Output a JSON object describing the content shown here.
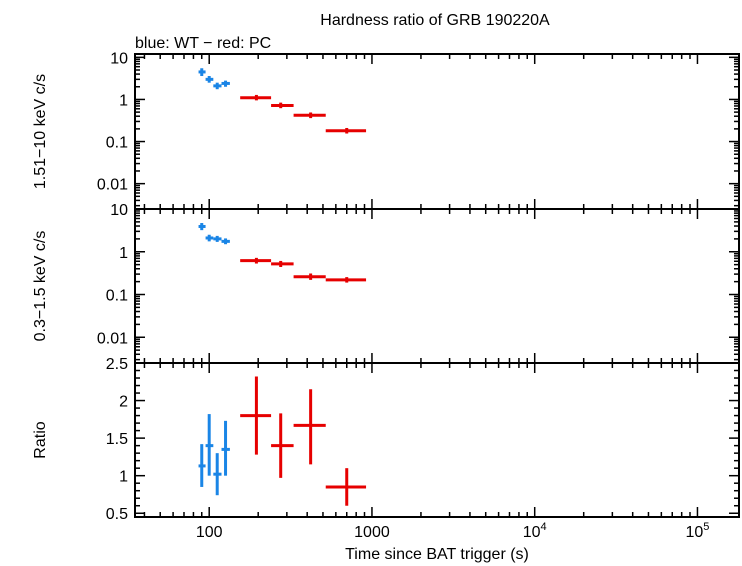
{
  "chart_data": {
    "type": "scatter",
    "title": "Hardness ratio of GRB 190220A",
    "subtitle": "blue: WT − red: PC",
    "xlabel": "Time since BAT trigger (s)",
    "xscale": "log",
    "xlim": [
      35,
      180000
    ],
    "x_ticks": [
      {
        "value": 100,
        "label": "100"
      },
      {
        "value": 1000,
        "label": "1000"
      },
      {
        "value": 10000,
        "label": "10",
        "sup": "4"
      },
      {
        "value": 100000,
        "label": "10",
        "sup": "5"
      }
    ],
    "colors": {
      "WT": "#1a85e6",
      "PC": "#e60000"
    },
    "panels": [
      {
        "id": "hard",
        "ylabel": "1.51−10 keV c/s",
        "yscale": "log",
        "ylim": [
          0.0025,
          12
        ],
        "y_ticks": [
          {
            "value": 10,
            "label": "10"
          },
          {
            "value": 1,
            "label": "1"
          },
          {
            "value": 0.1,
            "label": "0.1"
          },
          {
            "value": 0.01,
            "label": "0.01"
          }
        ],
        "series": [
          {
            "key": "WT",
            "points": [
              {
                "x": 90,
                "xlo": 86,
                "xhi": 95,
                "y": 4.5,
                "ylo": 3.6,
                "yhi": 5.5
              },
              {
                "x": 100,
                "xlo": 95,
                "xhi": 106,
                "y": 3.0,
                "ylo": 2.5,
                "yhi": 3.6
              },
              {
                "x": 112,
                "xlo": 106,
                "xhi": 119,
                "y": 2.1,
                "ylo": 1.75,
                "yhi": 2.5
              },
              {
                "x": 126,
                "xlo": 119,
                "xhi": 134,
                "y": 2.4,
                "ylo": 2.0,
                "yhi": 2.8
              }
            ]
          },
          {
            "key": "PC",
            "points": [
              {
                "x": 195,
                "xlo": 155,
                "xhi": 240,
                "y": 1.1,
                "ylo": 0.95,
                "yhi": 1.28
              },
              {
                "x": 275,
                "xlo": 240,
                "xhi": 330,
                "y": 0.72,
                "ylo": 0.62,
                "yhi": 0.84
              },
              {
                "x": 420,
                "xlo": 330,
                "xhi": 520,
                "y": 0.42,
                "ylo": 0.36,
                "yhi": 0.49
              },
              {
                "x": 700,
                "xlo": 520,
                "xhi": 920,
                "y": 0.18,
                "ylo": 0.155,
                "yhi": 0.21
              }
            ]
          }
        ]
      },
      {
        "id": "soft",
        "ylabel": "0.3−1.5 keV c/s",
        "yscale": "log",
        "ylim": [
          0.0025,
          10
        ],
        "y_ticks": [
          {
            "value": 10,
            "label": "10"
          },
          {
            "value": 1,
            "label": "1"
          },
          {
            "value": 0.1,
            "label": "0.1"
          },
          {
            "value": 0.01,
            "label": "0.01"
          }
        ],
        "series": [
          {
            "key": "WT",
            "points": [
              {
                "x": 90,
                "xlo": 86,
                "xhi": 95,
                "y": 3.9,
                "ylo": 3.2,
                "yhi": 4.7
              },
              {
                "x": 100,
                "xlo": 95,
                "xhi": 106,
                "y": 2.1,
                "ylo": 1.75,
                "yhi": 2.5
              },
              {
                "x": 112,
                "xlo": 106,
                "xhi": 119,
                "y": 2.0,
                "ylo": 1.7,
                "yhi": 2.35
              },
              {
                "x": 126,
                "xlo": 119,
                "xhi": 134,
                "y": 1.75,
                "ylo": 1.5,
                "yhi": 2.05
              }
            ]
          },
          {
            "key": "PC",
            "points": [
              {
                "x": 195,
                "xlo": 155,
                "xhi": 240,
                "y": 0.62,
                "ylo": 0.53,
                "yhi": 0.72
              },
              {
                "x": 275,
                "xlo": 240,
                "xhi": 330,
                "y": 0.52,
                "ylo": 0.44,
                "yhi": 0.61
              },
              {
                "x": 420,
                "xlo": 330,
                "xhi": 520,
                "y": 0.26,
                "ylo": 0.22,
                "yhi": 0.31
              },
              {
                "x": 700,
                "xlo": 520,
                "xhi": 920,
                "y": 0.22,
                "ylo": 0.19,
                "yhi": 0.255
              }
            ]
          }
        ]
      },
      {
        "id": "ratio",
        "ylabel": "Ratio",
        "yscale": "linear",
        "ylim": [
          0.45,
          2.5
        ],
        "y_ticks": [
          {
            "value": 2.5,
            "label": "2.5"
          },
          {
            "value": 2,
            "label": "2"
          },
          {
            "value": 1.5,
            "label": "1.5"
          },
          {
            "value": 1,
            "label": "1"
          },
          {
            "value": 0.5,
            "label": "0.5"
          }
        ],
        "series": [
          {
            "key": "WT",
            "points": [
              {
                "x": 90,
                "xlo": 86,
                "xhi": 95,
                "y": 1.13,
                "ylo": 0.85,
                "yhi": 1.42
              },
              {
                "x": 100,
                "xlo": 95,
                "xhi": 106,
                "y": 1.4,
                "ylo": 1.0,
                "yhi": 1.82
              },
              {
                "x": 112,
                "xlo": 106,
                "xhi": 119,
                "y": 1.02,
                "ylo": 0.74,
                "yhi": 1.3
              },
              {
                "x": 126,
                "xlo": 119,
                "xhi": 134,
                "y": 1.35,
                "ylo": 1.0,
                "yhi": 1.73
              }
            ]
          },
          {
            "key": "PC",
            "points": [
              {
                "x": 195,
                "xlo": 155,
                "xhi": 240,
                "y": 1.8,
                "ylo": 1.28,
                "yhi": 2.32
              },
              {
                "x": 275,
                "xlo": 240,
                "xhi": 330,
                "y": 1.4,
                "ylo": 0.97,
                "yhi": 1.83
              },
              {
                "x": 420,
                "xlo": 330,
                "xhi": 520,
                "y": 1.67,
                "ylo": 1.15,
                "yhi": 2.15
              },
              {
                "x": 700,
                "xlo": 520,
                "xhi": 920,
                "y": 0.85,
                "ylo": 0.6,
                "yhi": 1.1
              }
            ]
          }
        ]
      }
    ]
  }
}
